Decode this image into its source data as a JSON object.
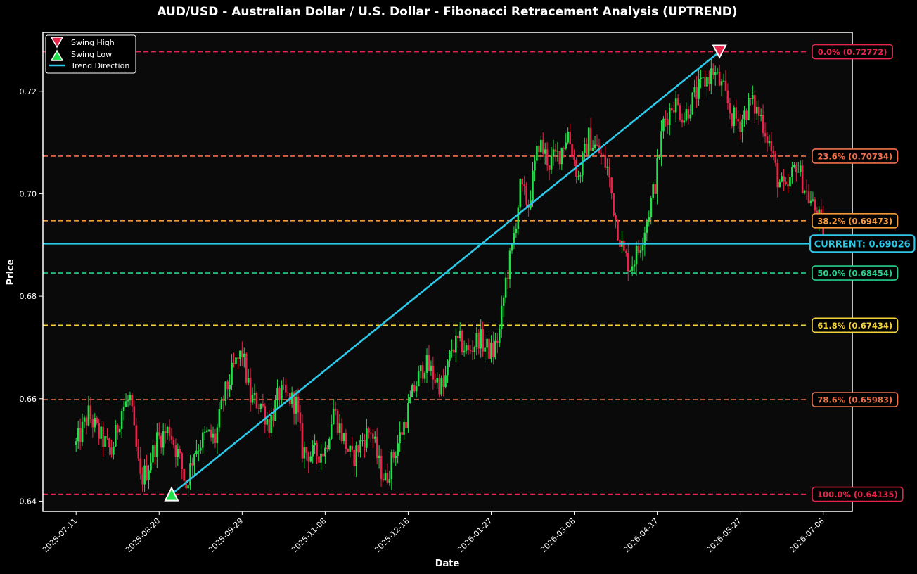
{
  "chart_data": {
    "type": "candlestick",
    "title": "AUD/USD - Australian Dollar / U.S. Dollar - Fibonacci Retracement Analysis (UPTREND)",
    "xlabel": "Date",
    "ylabel": "Price",
    "xlim": [
      "2025-06-25",
      "2026-07-20"
    ],
    "ylim": [
      0.638,
      0.7315
    ],
    "x_ticks": [
      "2025-07-11",
      "2025-08-20",
      "2025-09-29",
      "2025-11-08",
      "2025-12-18",
      "2026-01-27",
      "2026-03-08",
      "2026-04-17",
      "2026-05-27",
      "2026-07-06"
    ],
    "y_ticks": [
      {
        "value": 0.64,
        "label": "0.64"
      },
      {
        "value": 0.66,
        "label": "0.66"
      },
      {
        "value": 0.68,
        "label": "0.68"
      },
      {
        "value": 0.7,
        "label": "0.70"
      },
      {
        "value": 0.72,
        "label": "0.72"
      }
    ],
    "grid": false,
    "legend_position": "top-left",
    "colors": {
      "background": "#0a0a0a",
      "frame": "#ffffff",
      "text": "#ffffff",
      "up": "#22e04a",
      "down": "#e8244a",
      "trend": "#2cc8e8",
      "current": "#2cc8e8",
      "swing_high": "#e8244a",
      "swing_low": "#22e04a"
    },
    "price_path": [
      [
        "2025-07-11",
        0.651
      ],
      [
        "2025-07-17",
        0.657
      ],
      [
        "2025-07-22",
        0.653
      ],
      [
        "2025-07-28",
        0.6495
      ],
      [
        "2025-08-02",
        0.658
      ],
      [
        "2025-08-06",
        0.66
      ],
      [
        "2025-08-08",
        0.653
      ],
      [
        "2025-08-11",
        0.644
      ],
      [
        "2025-08-14",
        0.646
      ],
      [
        "2025-08-19",
        0.652
      ],
      [
        "2025-08-25",
        0.654
      ],
      [
        "2025-08-30",
        0.648
      ],
      [
        "2025-09-02",
        0.643
      ],
      [
        "2025-09-06",
        0.65
      ],
      [
        "2025-09-12",
        0.653
      ],
      [
        "2025-09-16",
        0.652
      ],
      [
        "2025-09-20",
        0.66
      ],
      [
        "2025-09-25",
        0.666
      ],
      [
        "2025-09-29",
        0.669
      ],
      [
        "2025-10-03",
        0.66
      ],
      [
        "2025-10-08",
        0.659
      ],
      [
        "2025-10-12",
        0.655
      ],
      [
        "2025-10-17",
        0.661
      ],
      [
        "2025-10-22",
        0.66
      ],
      [
        "2025-10-25",
        0.659
      ],
      [
        "2025-10-28",
        0.65
      ],
      [
        "2025-11-02",
        0.649
      ],
      [
        "2025-11-08",
        0.65
      ],
      [
        "2025-11-12",
        0.658
      ],
      [
        "2025-11-16",
        0.653
      ],
      [
        "2025-11-21",
        0.648
      ],
      [
        "2025-11-26",
        0.652
      ],
      [
        "2025-11-30",
        0.654
      ],
      [
        "2025-12-04",
        0.647
      ],
      [
        "2025-12-07",
        0.644
      ],
      [
        "2025-12-11",
        0.649
      ],
      [
        "2025-12-16",
        0.655
      ],
      [
        "2025-12-21",
        0.662
      ],
      [
        "2025-12-26",
        0.667
      ],
      [
        "2025-12-31",
        0.664
      ],
      [
        "2026-01-04",
        0.662
      ],
      [
        "2026-01-08",
        0.67
      ],
      [
        "2026-01-12",
        0.671
      ],
      [
        "2026-01-16",
        0.669
      ],
      [
        "2026-01-21",
        0.672
      ],
      [
        "2026-01-24",
        0.67
      ],
      [
        "2026-01-28",
        0.669
      ],
      [
        "2026-01-31",
        0.673
      ],
      [
        "2026-02-03",
        0.683
      ],
      [
        "2026-02-06",
        0.689
      ],
      [
        "2026-02-10",
        0.701
      ],
      [
        "2026-02-14",
        0.698
      ],
      [
        "2026-02-19",
        0.71
      ],
      [
        "2026-02-24",
        0.706
      ],
      [
        "2026-03-01",
        0.708
      ],
      [
        "2026-03-05",
        0.712
      ],
      [
        "2026-03-10",
        0.703
      ],
      [
        "2026-03-15",
        0.711
      ],
      [
        "2026-03-20",
        0.708
      ],
      [
        "2026-03-24",
        0.705
      ],
      [
        "2026-03-28",
        0.695
      ],
      [
        "2026-04-01",
        0.688
      ],
      [
        "2026-04-04",
        0.686
      ],
      [
        "2026-04-08",
        0.689
      ],
      [
        "2026-04-12",
        0.695
      ],
      [
        "2026-04-16",
        0.702
      ],
      [
        "2026-04-20",
        0.714
      ],
      [
        "2026-04-25",
        0.718
      ],
      [
        "2026-04-30",
        0.715
      ],
      [
        "2026-05-05",
        0.719
      ],
      [
        "2026-05-10",
        0.722
      ],
      [
        "2026-05-14",
        0.724
      ],
      [
        "2026-05-19",
        0.72
      ],
      [
        "2026-05-23",
        0.715
      ],
      [
        "2026-05-27",
        0.714
      ],
      [
        "2026-06-01",
        0.718
      ],
      [
        "2026-06-06",
        0.715
      ],
      [
        "2026-06-10",
        0.71
      ],
      [
        "2026-06-14",
        0.703
      ],
      [
        "2026-06-18",
        0.7
      ],
      [
        "2026-06-23",
        0.706
      ],
      [
        "2026-06-28",
        0.7
      ],
      [
        "2026-07-03",
        0.696
      ],
      [
        "2026-07-06",
        0.693
      ]
    ],
    "swing_high": {
      "date": "2026-05-17",
      "price": 0.72772,
      "label": "Swing High"
    },
    "swing_low": {
      "date": "2025-08-26",
      "price": 0.64135,
      "label": "Swing Low"
    },
    "trend_line": {
      "label": "Trend Direction",
      "from": [
        "2025-08-26",
        0.64135
      ],
      "to": [
        "2026-05-17",
        0.72772
      ]
    },
    "current": {
      "price": 0.69026,
      "label": "CURRENT: 0.69026"
    },
    "fib_levels": [
      {
        "ratio": 0.0,
        "price": 0.72772,
        "label": "0.0% (0.72772)",
        "color": "#e8244a"
      },
      {
        "ratio": 0.236,
        "price": 0.70734,
        "label": "23.6% (0.70734)",
        "color": "#f0704a"
      },
      {
        "ratio": 0.382,
        "price": 0.69473,
        "label": "38.2% (0.69473)",
        "color": "#f59a3a"
      },
      {
        "ratio": 0.5,
        "price": 0.68454,
        "label": "50.0% (0.68454)",
        "color": "#27cf8a"
      },
      {
        "ratio": 0.618,
        "price": 0.67434,
        "label": "61.8% (0.67434)",
        "color": "#f5d23c"
      },
      {
        "ratio": 0.786,
        "price": 0.65983,
        "label": "78.6% (0.65983)",
        "color": "#f0704a"
      },
      {
        "ratio": 1.0,
        "price": 0.64135,
        "label": "100.0% (0.64135)",
        "color": "#e8244a"
      }
    ]
  }
}
